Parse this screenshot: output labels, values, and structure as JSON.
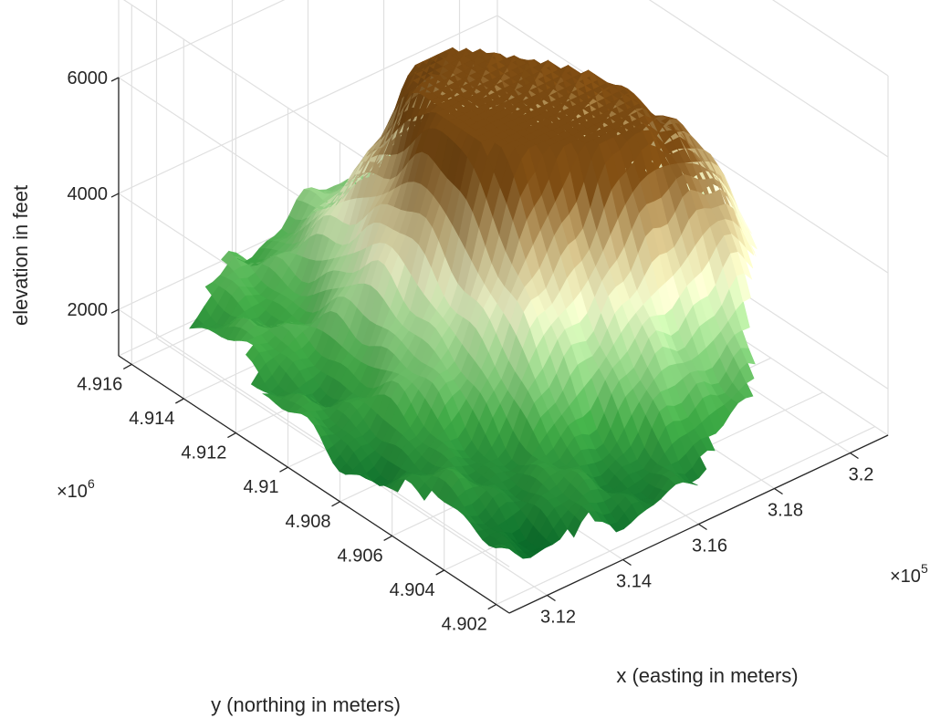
{
  "chart_data": {
    "type": "surface",
    "title": "",
    "xlabel": "x (easting in meters)",
    "ylabel": "y (northing in meters)",
    "zlabel": "elevation in feet",
    "x_ticks": [
      {
        "value": 312000,
        "label": "3.12"
      },
      {
        "value": 314000,
        "label": "3.14"
      },
      {
        "value": 316000,
        "label": "3.16"
      },
      {
        "value": 318000,
        "label": "3.18"
      },
      {
        "value": 320000,
        "label": "3.2"
      }
    ],
    "x_exponent": "×10",
    "x_exponent_power": "5",
    "y_ticks": [
      {
        "value": 4902000,
        "label": "4.902"
      },
      {
        "value": 4904000,
        "label": "4.904"
      },
      {
        "value": 4906000,
        "label": "4.906"
      },
      {
        "value": 4908000,
        "label": "4.908"
      },
      {
        "value": 4910000,
        "label": "4.91"
      },
      {
        "value": 4912000,
        "label": "4.912"
      },
      {
        "value": 4914000,
        "label": "4.914"
      },
      {
        "value": 4916000,
        "label": "4.916"
      }
    ],
    "y_exponent": "×10",
    "y_exponent_power": "6",
    "z_ticks": [
      {
        "value": 2000,
        "label": "2000"
      },
      {
        "value": 4000,
        "label": "4000"
      },
      {
        "value": 6000,
        "label": "6000"
      }
    ],
    "xlim": [
      311000,
      321000
    ],
    "ylim": [
      4901500,
      4916500
    ],
    "zlim": [
      1200,
      6000
    ],
    "grid": true,
    "colormap": "green-to-brown (demcmap)",
    "colors": {
      "low_dark_green": "#0b6b2a",
      "green": "#3fa845",
      "light_green": "#a8dc96",
      "pale": "#eef5c8",
      "tan": "#c9b783",
      "brown": "#7a4a12"
    },
    "peaks": [
      {
        "x": 316600,
        "y": 4911200,
        "z": 5600
      },
      {
        "x": 319000,
        "y": 4906800,
        "z": 5300
      },
      {
        "x": 316300,
        "y": 4908600,
        "z": 5100
      }
    ]
  }
}
